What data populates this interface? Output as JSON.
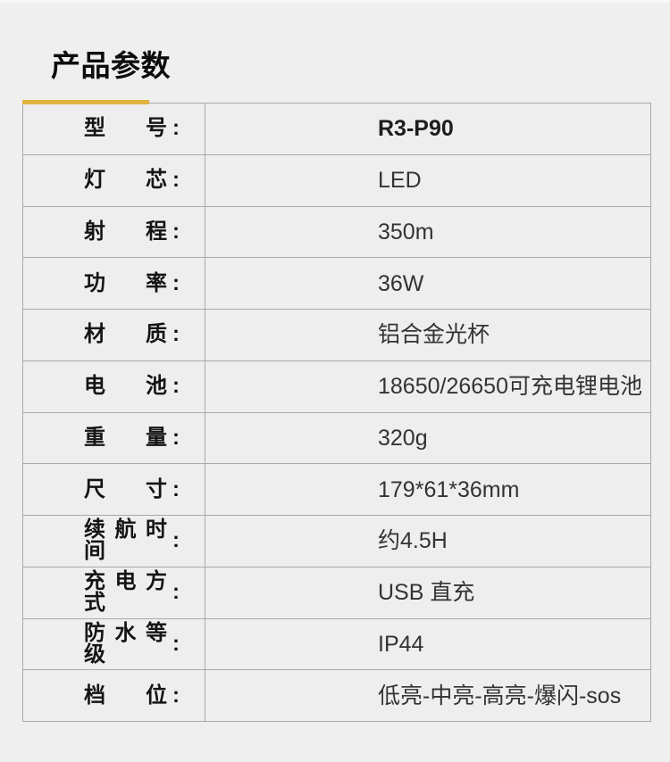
{
  "section": {
    "title": "产品参数"
  },
  "accent_color": "#e2b43f",
  "table": {
    "colon": ":",
    "rows": [
      {
        "label": "型号",
        "value": "R3-P90",
        "bold": true
      },
      {
        "label": "灯芯",
        "value": "LED",
        "bold": false
      },
      {
        "label": "射程",
        "value": "350m",
        "bold": false
      },
      {
        "label": "功率",
        "value": "36W",
        "bold": false
      },
      {
        "label": "材质",
        "value": "铝合金光杯",
        "bold": false
      },
      {
        "label": "电池",
        "value": "18650/26650可充电锂电池",
        "bold": false
      },
      {
        "label": "重量",
        "value": "320g",
        "bold": false
      },
      {
        "label": "尺寸",
        "value": "179*61*36mm",
        "bold": false
      },
      {
        "label": "续航时间",
        "value": "约4.5H",
        "bold": false
      },
      {
        "label": "充电方式",
        "value": "USB 直充",
        "bold": false
      },
      {
        "label": "防水等级",
        "value": "IP44",
        "bold": false
      },
      {
        "label": "档位",
        "value": "低亮-中亮-高亮-爆闪-sos",
        "bold": false
      }
    ]
  }
}
